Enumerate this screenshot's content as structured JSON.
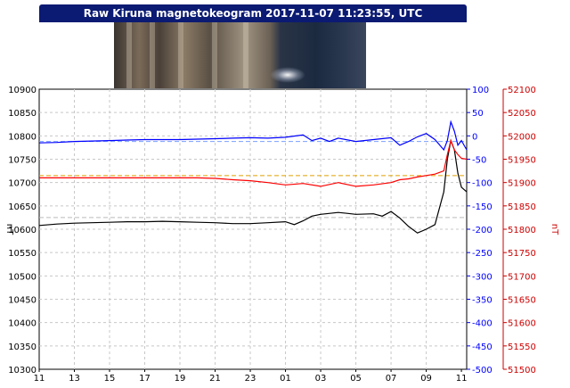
{
  "title": "Raw Kiruna magnetokeogram 2017-11-07 11:23:55, UTC",
  "colors": {
    "title_bg": "#0b1a72",
    "z_series": "#000000",
    "x_series": "#ff0000",
    "y_series": "#0000ff",
    "ref_z": "#bbbbbb",
    "ref_x": "#e0a000",
    "ref_y": "#7aa0ff"
  },
  "chart_data": {
    "type": "line",
    "x_tick_labels": [
      "11",
      "13",
      "15",
      "17",
      "19",
      "21",
      "23",
      "01",
      "03",
      "05",
      "07",
      "09",
      "11"
    ],
    "left_axis": {
      "label": "nT",
      "ylim": [
        10300,
        10900
      ],
      "ticks": [
        "10900",
        "10850",
        "10800",
        "10750",
        "10700",
        "10650",
        "10600",
        "10550",
        "10500",
        "10450",
        "10400",
        "10350",
        "10300"
      ],
      "color": "#000000"
    },
    "right_blue_axis": {
      "ylim": [
        -500,
        100
      ],
      "ticks": [
        "100",
        "50",
        "0",
        "-50",
        "-100",
        "-150",
        "-200",
        "-250",
        "-300",
        "-350",
        "-400",
        "-450",
        "-500"
      ],
      "color": "#0000ff"
    },
    "right_red_axis": {
      "label": "nT",
      "ylim": [
        51500,
        52100
      ],
      "ticks": [
        "52100",
        "52050",
        "52000",
        "51950",
        "51900",
        "51850",
        "51800",
        "51750",
        "51700",
        "51650",
        "51600",
        "51550",
        "51500"
      ],
      "color": "#cc0000"
    },
    "x_range_hours": [
      0,
      24.3
    ],
    "series": [
      {
        "axis": "left",
        "color": "#000000",
        "x": [
          0,
          1,
          2,
          3,
          4,
          5,
          6,
          7,
          8,
          9,
          10,
          11,
          12,
          13,
          14,
          14.5,
          15,
          15.5,
          16,
          17,
          17.5,
          18,
          19,
          19.5,
          20,
          20.5,
          21,
          21.5,
          22,
          22.5,
          23,
          23.2,
          23.4,
          23.6,
          23.8,
          24,
          24.3
        ],
        "y": [
          10608,
          10611,
          10613,
          10614,
          10615,
          10616,
          10616,
          10617,
          10616,
          10615,
          10614,
          10612,
          10612,
          10614,
          10616,
          10610,
          10618,
          10628,
          10632,
          10636,
          10634,
          10632,
          10633,
          10628,
          10638,
          10624,
          10606,
          10592,
          10600,
          10610,
          10680,
          10750,
          10790,
          10770,
          10720,
          10690,
          10680
        ]
      },
      {
        "axis": "right_red",
        "color": "#ff0000",
        "x": [
          0,
          1,
          2,
          3,
          4,
          5,
          6,
          7,
          8,
          9,
          10,
          11,
          12,
          13,
          14,
          15,
          16,
          17,
          18,
          19,
          20,
          20.5,
          21,
          21.5,
          22,
          22.5,
          23,
          23.2,
          23.4,
          23.6,
          23.8,
          24,
          24.3
        ],
        "y": [
          51910,
          51910,
          51910,
          51910,
          51910,
          51910,
          51910,
          51910,
          51910,
          51910,
          51909,
          51906,
          51904,
          51900,
          51895,
          51898,
          51892,
          51900,
          51892,
          51895,
          51900,
          51906,
          51908,
          51912,
          51915,
          51918,
          51925,
          51960,
          51990,
          51970,
          51960,
          51952,
          51950
        ]
      },
      {
        "axis": "right_blue",
        "color": "#0000ff",
        "x": [
          0,
          1,
          2,
          3,
          4,
          5,
          6,
          7,
          8,
          9,
          10,
          11,
          12,
          13,
          14,
          15,
          15.5,
          16,
          16.5,
          17,
          18,
          19,
          20,
          20.5,
          21,
          21.5,
          22,
          22.5,
          23,
          23.2,
          23.4,
          23.6,
          23.8,
          24,
          24.3
        ],
        "y": [
          -15,
          -14,
          -12,
          -11,
          -10,
          -9,
          -8,
          -8,
          -8,
          -7,
          -6,
          -5,
          -4,
          -5,
          -3,
          2,
          -10,
          -5,
          -12,
          -5,
          -12,
          -8,
          -4,
          -20,
          -12,
          -2,
          5,
          -8,
          -30,
          -10,
          30,
          10,
          -20,
          -10,
          -30
        ]
      }
    ],
    "reference_lines": [
      {
        "axis": "left",
        "value": 10625,
        "color": "#bbbbbb"
      },
      {
        "axis": "right_red",
        "value": 51915,
        "color": "#e0a000"
      },
      {
        "axis": "right_blue",
        "value": -12,
        "color": "#7aa0ff"
      }
    ],
    "grid": true
  }
}
